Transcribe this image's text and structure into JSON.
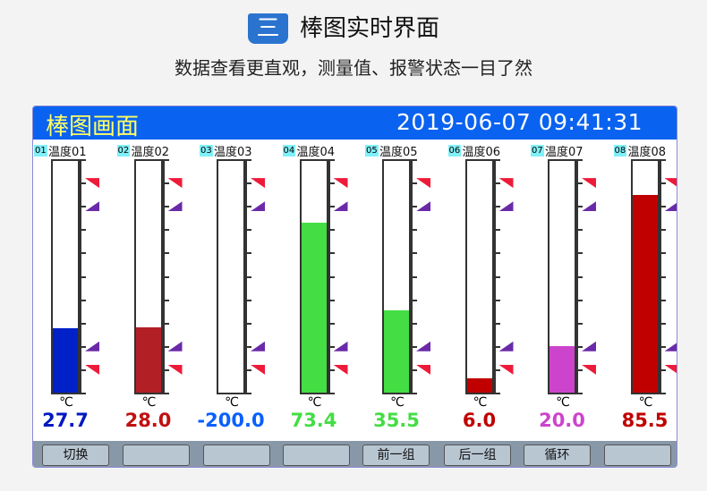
{
  "banner": {
    "badge": "三",
    "title": "棒图实时界面",
    "subtitle": "数据查看更直观，测量值、报警状态一目了然"
  },
  "screen": {
    "title": "棒图画面",
    "datetime": "2019-06-07  09:41:31"
  },
  "scale": {
    "min": 0,
    "max": 100
  },
  "alarm_flags": [
    {
      "level": 90,
      "color": "#ee1a3a"
    },
    {
      "level": 80,
      "color": "#6a2aa8"
    },
    {
      "level": 20,
      "color": "#6a2aa8"
    },
    {
      "level": 10,
      "color": "#ee1a3a"
    }
  ],
  "channels": [
    {
      "num": "01",
      "label": "温度01",
      "unit": "℃",
      "value": "27.7",
      "level": 27.7,
      "fill_color": "#0020c8",
      "value_color": "#0018c0"
    },
    {
      "num": "02",
      "label": "温度02",
      "unit": "℃",
      "value": "28.0",
      "level": 28.0,
      "fill_color": "#b22025",
      "value_color": "#c01010"
    },
    {
      "num": "03",
      "label": "温度03",
      "unit": "℃",
      "value": "-200.0",
      "level": 0,
      "fill_color": "#ffffff",
      "value_color": "#0a60ff"
    },
    {
      "num": "04",
      "label": "温度04",
      "unit": "℃",
      "value": "73.4",
      "level": 73.4,
      "fill_color": "#44dd44",
      "value_color": "#44dd44"
    },
    {
      "num": "05",
      "label": "温度05",
      "unit": "℃",
      "value": "35.5",
      "level": 35.5,
      "fill_color": "#44dd44",
      "value_color": "#44dd44"
    },
    {
      "num": "06",
      "label": "温度06",
      "unit": "℃",
      "value": "6.0",
      "level": 6.0,
      "fill_color": "#c00000",
      "value_color": "#c00000"
    },
    {
      "num": "07",
      "label": "温度07",
      "unit": "℃",
      "value": "20.0",
      "level": 20.0,
      "fill_color": "#cc44cc",
      "value_color": "#cc44cc"
    },
    {
      "num": "08",
      "label": "温度08",
      "unit": "℃",
      "value": "85.5",
      "level": 85.5,
      "fill_color": "#c00000",
      "value_color": "#c00000"
    }
  ],
  "buttons": [
    "切换",
    "",
    "",
    "",
    "前一组",
    "后一组",
    "循环",
    ""
  ]
}
